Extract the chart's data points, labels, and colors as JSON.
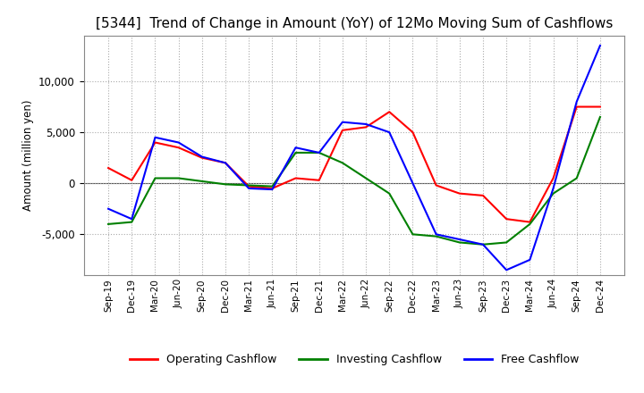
{
  "title": "[5344]  Trend of Change in Amount (YoY) of 12Mo Moving Sum of Cashflows",
  "ylabel": "Amount (million yen)",
  "x_labels": [
    "Sep-19",
    "Dec-19",
    "Mar-20",
    "Jun-20",
    "Sep-20",
    "Dec-20",
    "Mar-21",
    "Jun-21",
    "Sep-21",
    "Dec-21",
    "Mar-22",
    "Jun-22",
    "Sep-22",
    "Dec-22",
    "Mar-23",
    "Jun-23",
    "Sep-23",
    "Dec-23",
    "Mar-24",
    "Jun-24",
    "Sep-24",
    "Dec-24"
  ],
  "operating": [
    1500,
    300,
    4000,
    3500,
    2500,
    2000,
    -300,
    -500,
    500,
    300,
    5200,
    5500,
    7000,
    5000,
    -200,
    -1000,
    -1200,
    -3500,
    -3800,
    500,
    7500,
    7500
  ],
  "investing": [
    -4000,
    -3800,
    500,
    500,
    200,
    -100,
    -200,
    -300,
    3000,
    3000,
    2000,
    500,
    -1000,
    -5000,
    -5200,
    -5800,
    -6000,
    -5800,
    -4000,
    -1000,
    500,
    6500
  ],
  "free": [
    -2500,
    -3500,
    4500,
    4000,
    2600,
    2000,
    -500,
    -600,
    3500,
    3000,
    6000,
    5800,
    5000,
    0,
    -5000,
    -5500,
    -6000,
    -8500,
    -7500,
    -500,
    8000,
    13500
  ],
  "operating_color": "#FF0000",
  "investing_color": "#008000",
  "free_color": "#0000FF",
  "ylim": [
    -9000,
    14500
  ],
  "yticks": [
    -5000,
    0,
    5000,
    10000
  ],
  "background_color": "#FFFFFF",
  "grid_color": "#AAAAAA",
  "title_fontsize": 11,
  "legend_labels": [
    "Operating Cashflow",
    "Investing Cashflow",
    "Free Cashflow"
  ]
}
